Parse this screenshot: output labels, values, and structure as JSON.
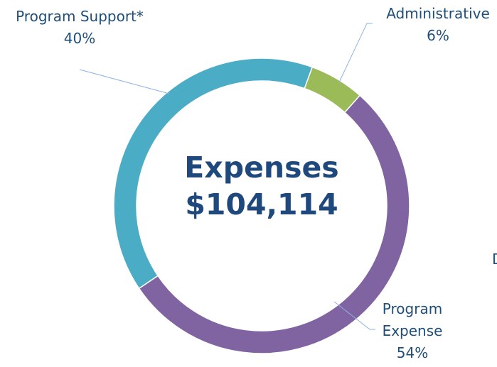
{
  "chart_data": {
    "type": "donut",
    "title": "Expenses",
    "subtitle": "$104,114",
    "categories": [
      "Administrative",
      "Program Expense",
      "Program Support*"
    ],
    "values": [
      6,
      54,
      40
    ],
    "value_labels": [
      "6%",
      "54%",
      "40%"
    ],
    "colors": [
      "#9bbb59",
      "#8064a2",
      "#4bacc6"
    ],
    "annotations": [
      "D"
    ]
  }
}
